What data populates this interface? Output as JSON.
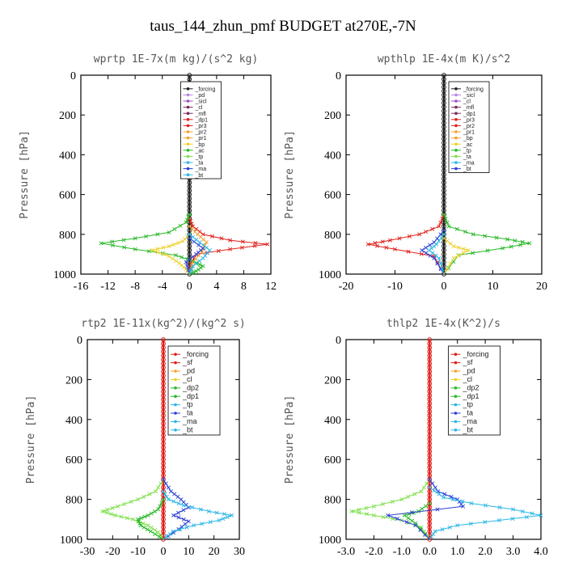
{
  "figure_title": "taus_144_zhun_pmf  BUDGET at270E,-7N",
  "y_axis_label": "Pressure [hPa]",
  "colors": {
    "red": "#e0201b",
    "green": "#27b827",
    "lime": "#7de04a",
    "orange": "#f4a22a",
    "yellow": "#ecd12a",
    "blue": "#2a3fd6",
    "cyan": "#2ab6e6",
    "purple": "#b487e0",
    "violet": "#9b4fc4",
    "plum": "#7a2b5e",
    "black": "#222222"
  },
  "chart_data": [
    {
      "type": "line",
      "title": "wprtp  1E-7x(m kg)/(s^2 kg)",
      "ylabel": "Pressure [hPa]",
      "xlim": [
        -16,
        12
      ],
      "ylim": [
        1000,
        0
      ],
      "xticks": [
        -16,
        -12,
        -8,
        -4,
        0,
        4,
        8,
        12
      ],
      "xtick_labels": [
        "-16",
        "-12",
        "-8",
        "-4",
        "0",
        "4",
        "8",
        "12"
      ],
      "yticks": [
        0,
        200,
        400,
        600,
        800,
        1000
      ],
      "legend_position": "top-right",
      "legend": [
        "_forcing",
        "_pd",
        "_sicl",
        "_cl",
        "_mfl",
        "_dp1",
        "_pr3",
        "_pr2",
        "_pr1",
        "_bp",
        "_ac",
        "_tp",
        "_ta",
        "_ma",
        "_bt"
      ],
      "series": [
        {
          "name": "_forcing",
          "color": "black",
          "x": [
            0,
            0
          ],
          "y": [
            0,
            1000
          ]
        },
        {
          "name": "_dp1",
          "color": "red",
          "x": [
            0,
            0.5,
            2,
            6,
            11.5,
            6,
            1,
            0.2,
            0
          ],
          "y": [
            720,
            760,
            800,
            830,
            850,
            875,
            900,
            950,
            1000
          ]
        },
        {
          "name": "_bp",
          "color": "green",
          "x": [
            0,
            -0.5,
            -3,
            -8,
            -13,
            -8,
            -2,
            0.5,
            2,
            1,
            0
          ],
          "y": [
            700,
            740,
            790,
            820,
            845,
            875,
            905,
            935,
            960,
            985,
            1000
          ]
        },
        {
          "name": "_pr1",
          "color": "yellow",
          "x": [
            0,
            -1,
            -3,
            -5.5,
            -3,
            -1.5,
            -0.5,
            0
          ],
          "y": [
            800,
            835,
            860,
            880,
            910,
            945,
            975,
            1000
          ]
        },
        {
          "name": "_pr2",
          "color": "orange",
          "x": [
            0,
            1.2,
            2.5,
            1.8,
            0.5,
            0
          ],
          "y": [
            760,
            800,
            840,
            890,
            940,
            1000
          ]
        },
        {
          "name": "_tp",
          "color": "blue",
          "x": [
            0,
            2,
            1,
            -0.5,
            0
          ],
          "y": [
            820,
            870,
            900,
            940,
            1000
          ]
        },
        {
          "name": "_ta",
          "color": "cyan",
          "x": [
            0,
            1.5,
            3,
            2,
            0.5,
            0
          ],
          "y": [
            800,
            840,
            880,
            920,
            960,
            1000
          ]
        }
      ]
    },
    {
      "type": "line",
      "title": "wpthlp  1E-4x(m K)/s^2",
      "ylabel": "Pressure [hPa]",
      "xlim": [
        -20,
        20
      ],
      "ylim": [
        1000,
        0
      ],
      "xticks": [
        -20,
        -10,
        0,
        10,
        20
      ],
      "xtick_labels": [
        "-20",
        "-10",
        "0",
        "10",
        "20"
      ],
      "yticks": [
        0,
        200,
        400,
        600,
        800,
        1000
      ],
      "legend_position": "top-right",
      "legend": [
        "_forcing",
        "_sicl",
        "_cl",
        "_mfl",
        "_dp1",
        "_pr3",
        "_pr2",
        "_pr1",
        "_bp",
        "_ac",
        "_tp",
        "_ta",
        "_ma",
        "_bt"
      ],
      "series": [
        {
          "name": "_forcing",
          "color": "black",
          "x": [
            0,
            0
          ],
          "y": [
            0,
            1000
          ]
        },
        {
          "name": "_dp1",
          "color": "red",
          "x": [
            0,
            -1,
            -5,
            -11,
            -15.5,
            -10,
            -2,
            0
          ],
          "y": [
            700,
            760,
            800,
            830,
            850,
            875,
            910,
            1000
          ]
        },
        {
          "name": "_bp",
          "color": "green",
          "x": [
            0,
            1,
            6,
            13,
            17.5,
            12,
            3,
            0
          ],
          "y": [
            700,
            760,
            800,
            825,
            845,
            870,
            905,
            1000
          ]
        },
        {
          "name": "_pr1",
          "color": "yellow",
          "x": [
            0,
            2,
            5,
            2,
            0
          ],
          "y": [
            820,
            860,
            880,
            920,
            1000
          ]
        },
        {
          "name": "_tp",
          "color": "blue",
          "x": [
            0,
            -2,
            -4.5,
            -2,
            0
          ],
          "y": [
            780,
            840,
            880,
            920,
            1000
          ]
        },
        {
          "name": "_ta",
          "color": "cyan",
          "x": [
            0,
            -1.5,
            -3,
            -1,
            0
          ],
          "y": [
            800,
            850,
            880,
            920,
            1000
          ]
        }
      ]
    },
    {
      "type": "line",
      "title": "rtp2  1E-11x(kg^2)/(kg^2 s)",
      "ylabel": "Pressure [hPa]",
      "xlim": [
        -30,
        30
      ],
      "ylim": [
        1000,
        0
      ],
      "xticks": [
        -30,
        -20,
        -10,
        0,
        10,
        20,
        30
      ],
      "xtick_labels": [
        "-30",
        "-20",
        "-10",
        "0",
        "10",
        "20",
        "30"
      ],
      "yticks": [
        0,
        200,
        400,
        600,
        800,
        1000
      ],
      "legend_position": "top-right",
      "legend": [
        "_forcing",
        "_sf",
        "_pd",
        "_cl",
        "_dp2",
        "_dp1",
        "_tp",
        "_ta",
        "_ma",
        "_bt"
      ],
      "series": [
        {
          "name": "_forcing",
          "color": "red",
          "x": [
            0,
            0
          ],
          "y": [
            0,
            1000
          ]
        },
        {
          "name": "_dp1",
          "color": "lime",
          "x": [
            0,
            -3,
            -10,
            -18,
            -24,
            -19,
            -12,
            -6,
            -2,
            0
          ],
          "y": [
            700,
            760,
            800,
            835,
            860,
            880,
            900,
            930,
            965,
            1000
          ]
        },
        {
          "name": "_dp2",
          "color": "green",
          "x": [
            0,
            -2,
            -6,
            -10,
            -9,
            -5,
            0
          ],
          "y": [
            800,
            850,
            880,
            900,
            930,
            960,
            1000
          ]
        },
        {
          "name": "_tp",
          "color": "blue",
          "x": [
            0,
            3,
            7,
            10,
            4,
            10,
            6,
            0
          ],
          "y": [
            700,
            760,
            800,
            840,
            880,
            910,
            950,
            1000
          ]
        },
        {
          "name": "_ta",
          "color": "cyan",
          "x": [
            0,
            2,
            8,
            18,
            27,
            22,
            12,
            4,
            0
          ],
          "y": [
            760,
            800,
            830,
            860,
            880,
            905,
            930,
            960,
            1000
          ]
        }
      ]
    },
    {
      "type": "line",
      "title": "thlp2  1E-4x(K^2)/s",
      "ylabel": "Pressure [hPa]",
      "xlim": [
        -3,
        4
      ],
      "ylim": [
        1000,
        0
      ],
      "xticks": [
        -3,
        -2,
        -1,
        0,
        1,
        2,
        3,
        4
      ],
      "xtick_labels": [
        "-3.0",
        "-2.0",
        "-1.0",
        "0.0",
        "1.0",
        "2.0",
        "3.0",
        "4.0"
      ],
      "yticks": [
        0,
        200,
        400,
        600,
        800,
        1000
      ],
      "legend_position": "top-right",
      "legend": [
        "_forcing",
        "_sf",
        "_pd",
        "_cl",
        "_dp2",
        "_dp1",
        "_tp",
        "_ta",
        "_ma",
        "_bt"
      ],
      "series": [
        {
          "name": "_forcing",
          "color": "red",
          "x": [
            0,
            0
          ],
          "y": [
            0,
            1000
          ]
        },
        {
          "name": "_dp1",
          "color": "lime",
          "x": [
            0,
            -0.3,
            -1,
            -2,
            -2.8,
            -2,
            -1,
            -0.3,
            0
          ],
          "y": [
            700,
            760,
            800,
            835,
            860,
            880,
            905,
            940,
            1000
          ]
        },
        {
          "name": "_dp2",
          "color": "green",
          "x": [
            0,
            -0.4,
            -0.9,
            -0.5,
            0
          ],
          "y": [
            820,
            860,
            880,
            920,
            1000
          ]
        },
        {
          "name": "_tp",
          "color": "blue",
          "x": [
            0,
            0.3,
            1,
            1.2,
            -1.5,
            -0.5,
            0
          ],
          "y": [
            700,
            760,
            800,
            835,
            880,
            930,
            1000
          ]
        },
        {
          "name": "_ta",
          "color": "cyan",
          "x": [
            0,
            0.5,
            1.5,
            3,
            4,
            2.5,
            1,
            0.2,
            0
          ],
          "y": [
            740,
            790,
            820,
            850,
            880,
            905,
            930,
            960,
            1000
          ]
        }
      ]
    }
  ]
}
